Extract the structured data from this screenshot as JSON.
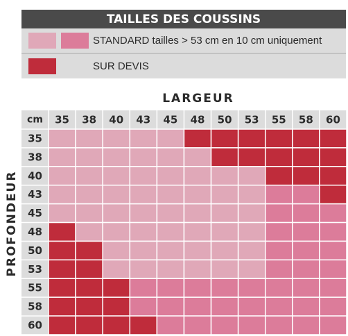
{
  "legend": {
    "title": "TAILLES DES COUSSINS",
    "standard_label": "STANDARD tailles > 53 cm en  10 cm uniquement",
    "devis_label": "SUR DEVIS"
  },
  "colors": {
    "light_pink": "#e0a8b8",
    "pink": "#dc7c9a",
    "red": "#bf2c3b",
    "header_bg": "#dcdcdc",
    "title_bg": "#4a4a4a"
  },
  "chart_data": {
    "type": "table",
    "title": "",
    "xlabel": "LARGEUR",
    "ylabel": "PROFONDEUR",
    "corner_label": "cm",
    "columns": [
      "35",
      "38",
      "40",
      "43",
      "45",
      "48",
      "50",
      "53",
      "55",
      "58",
      "60"
    ],
    "rows": [
      "35",
      "38",
      "40",
      "43",
      "45",
      "48",
      "50",
      "53",
      "55",
      "58",
      "60"
    ],
    "legend_key": {
      "L": "standard (light pink)",
      "P": "standard (pink)",
      "R": "SUR DEVIS"
    },
    "cells": [
      [
        "L",
        "L",
        "L",
        "L",
        "L",
        "R",
        "R",
        "R",
        "R",
        "R",
        "R"
      ],
      [
        "L",
        "L",
        "L",
        "L",
        "L",
        "L",
        "R",
        "R",
        "R",
        "R",
        "R"
      ],
      [
        "L",
        "L",
        "L",
        "L",
        "L",
        "L",
        "L",
        "L",
        "R",
        "R",
        "R"
      ],
      [
        "L",
        "L",
        "L",
        "L",
        "L",
        "L",
        "L",
        "L",
        "P",
        "P",
        "R"
      ],
      [
        "L",
        "L",
        "L",
        "L",
        "L",
        "L",
        "L",
        "L",
        "P",
        "P",
        "P"
      ],
      [
        "R",
        "L",
        "L",
        "L",
        "L",
        "L",
        "L",
        "L",
        "P",
        "P",
        "P"
      ],
      [
        "R",
        "R",
        "L",
        "L",
        "L",
        "L",
        "L",
        "L",
        "P",
        "P",
        "P"
      ],
      [
        "R",
        "R",
        "L",
        "L",
        "L",
        "L",
        "L",
        "L",
        "P",
        "P",
        "P"
      ],
      [
        "R",
        "R",
        "R",
        "P",
        "P",
        "P",
        "P",
        "P",
        "P",
        "P",
        "P"
      ],
      [
        "R",
        "R",
        "R",
        "P",
        "P",
        "P",
        "P",
        "P",
        "P",
        "P",
        "P"
      ],
      [
        "R",
        "R",
        "R",
        "R",
        "P",
        "P",
        "P",
        "P",
        "P",
        "P",
        "P"
      ]
    ]
  }
}
